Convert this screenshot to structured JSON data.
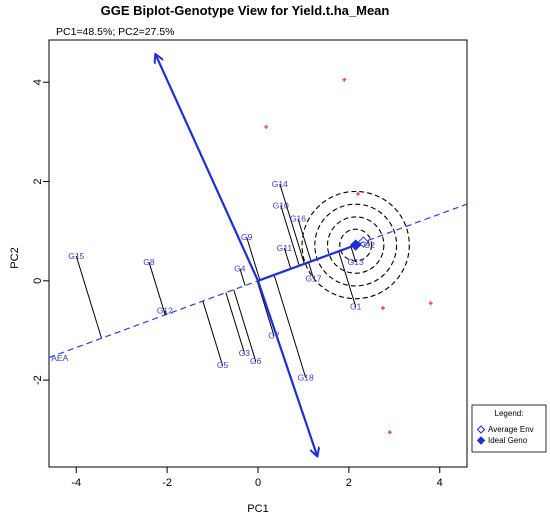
{
  "chart_data": {
    "type": "scatter",
    "title": "GGE Biplot-Genotype View for Yield.t.ha_Mean",
    "subtitle": "PC1=48.5%; PC2=27.5%",
    "xlabel": "PC1",
    "ylabel": "PC2",
    "xlim": [
      -4.6,
      4.6
    ],
    "ylim": [
      -3.75,
      4.85
    ],
    "xticks": [
      -4,
      -2,
      0,
      2,
      4
    ],
    "yticks": [
      -2,
      0,
      2,
      4
    ],
    "aea_label": "AEA",
    "aea_slope": 0.336,
    "ideal_point": [
      2.15,
      0.72
    ],
    "average_env_point": [
      2.32,
      0.78
    ],
    "ideal_circle_radii": [
      0.35,
      0.62,
      0.9,
      1.18
    ],
    "perpendicular_arrow": {
      "start": [
        -2.25,
        4.55
      ],
      "end": [
        1.3,
        -3.52
      ]
    },
    "genotypes": [
      {
        "name": "G1",
        "x": 2.15,
        "y": -0.52
      },
      {
        "name": "G2",
        "x": 2.45,
        "y": 0.72
      },
      {
        "name": "G3",
        "x": -0.3,
        "y": -1.45
      },
      {
        "name": "G4",
        "x": -0.4,
        "y": 0.25
      },
      {
        "name": "G5",
        "x": -0.78,
        "y": -1.7
      },
      {
        "name": "G6",
        "x": -0.05,
        "y": -1.62
      },
      {
        "name": "G7",
        "x": 0.35,
        "y": -1.1
      },
      {
        "name": "G8",
        "x": -2.4,
        "y": 0.38
      },
      {
        "name": "G9",
        "x": -0.25,
        "y": 0.88
      },
      {
        "name": "G10",
        "x": 0.5,
        "y": 1.52
      },
      {
        "name": "G11",
        "x": 0.58,
        "y": 0.66
      },
      {
        "name": "G12",
        "x": -2.05,
        "y": -0.6
      },
      {
        "name": "G13",
        "x": 2.15,
        "y": 0.38
      },
      {
        "name": "G14",
        "x": 0.48,
        "y": 1.95
      },
      {
        "name": "G15",
        "x": -4.0,
        "y": 0.5
      },
      {
        "name": "G16",
        "x": 0.88,
        "y": 1.25
      },
      {
        "name": "G17",
        "x": 1.22,
        "y": 0.05
      },
      {
        "name": "G18",
        "x": 1.05,
        "y": -1.95
      }
    ],
    "environments": [
      {
        "x": 1.9,
        "y": 4.05
      },
      {
        "x": 0.18,
        "y": 3.1
      },
      {
        "x": 2.2,
        "y": 1.75
      },
      {
        "x": 2.75,
        "y": -0.55
      },
      {
        "x": 3.8,
        "y": -0.45
      },
      {
        "x": 2.9,
        "y": -3.05
      }
    ],
    "colors": {
      "genotype": "#3b3bd0",
      "arrow": "#1a2fd6",
      "aea": "#2a3fe0",
      "environment": "#e8504a",
      "circles": "#000000",
      "projection": "#000000"
    },
    "legend": {
      "title": "Legend:",
      "placement": "bottom-right-outside",
      "items": [
        {
          "label": "Average Env",
          "symbol": "diamond-open"
        },
        {
          "label": "Ideal Geno",
          "symbol": "diamond-filled"
        }
      ]
    }
  }
}
